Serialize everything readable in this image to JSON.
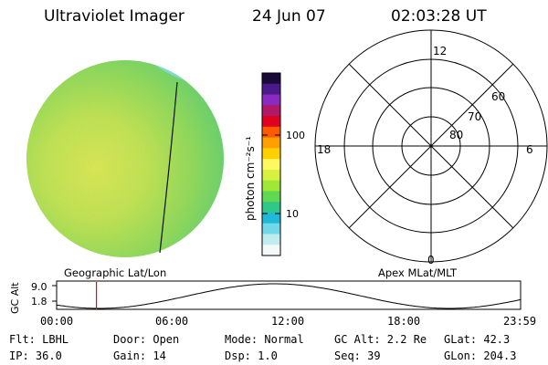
{
  "header": {
    "instrument": "Ultraviolet Imager",
    "date": "24 Jun 07",
    "time": "02:03:28 UT"
  },
  "colorbar": {
    "unit_label": "photon cm⁻²s⁻¹",
    "tick_labels": [
      "100",
      "10"
    ],
    "colors": [
      "#1a0a3a",
      "#4a1a8a",
      "#8a2ac0",
      "#b01868",
      "#e00020",
      "#ff5a00",
      "#ffa000",
      "#ffd000",
      "#fff860",
      "#d8f040",
      "#a0e838",
      "#60d850",
      "#30c888",
      "#20b8d8",
      "#70d8e8",
      "#c0ecf0",
      "#f4f8f8"
    ]
  },
  "polar_plot": {
    "mlt_labels": [
      "12",
      "18",
      "6",
      "0"
    ],
    "lat_labels": [
      "60",
      "70",
      "80"
    ]
  },
  "images": {
    "geo_label": "Geographic Lat/Lon",
    "apex_label": "Apex MLat/MLT"
  },
  "timeline": {
    "y_label": "GC Alt",
    "y_ticks": [
      "9.0",
      "1.8"
    ],
    "x_ticks": [
      "00:00",
      "06:00",
      "12:00",
      "18:00",
      "23:59"
    ],
    "marker_hours": 2.058,
    "line_color": "#ff0000"
  },
  "status": {
    "flt": "Flt: LBHL",
    "ip": "IP: 36.0",
    "door": "Door: Open",
    "gain": "Gain: 14",
    "mode": "Mode: Normal",
    "dsp": "Dsp:    1.0",
    "gc_alt": "GC Alt: 2.2 Re",
    "seq": "Seq: 39",
    "glat": "GLat:  42.3",
    "glon": "GLon: 204.3"
  }
}
